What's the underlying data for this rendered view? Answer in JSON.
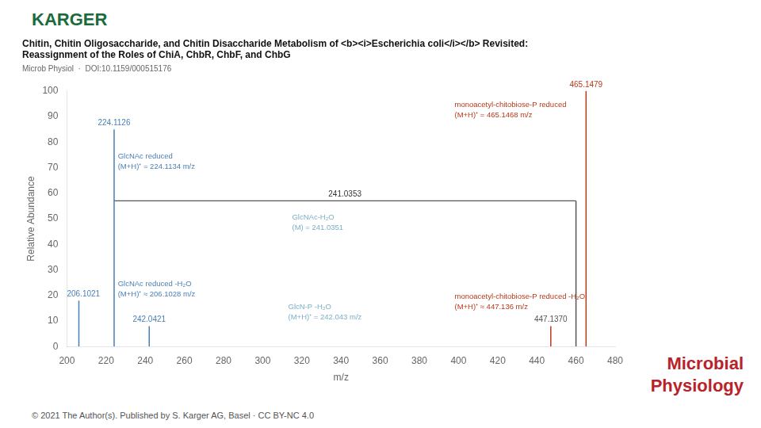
{
  "chart_data": {
    "type": "stem",
    "title": [
      "Chitin, Chitin Oligosaccharide, and Chitin Disaccharide Metabolism of <b><i>Escherichia coli</i></b> Revisited:",
      "Reassignment of the Roles of ChiA, ChbR, ChbF, and ChbG"
    ],
    "subtitle": "Microb Physiol  ·  DOI:10.1159/000515176",
    "logo": {
      "text": "KARGER",
      "color": "#1a6b3c"
    },
    "brand": {
      "text": [
        "Microbial",
        "Physiology"
      ],
      "color": "#b8232a"
    },
    "footer": "© 2021 The Author(s). Published by S. Karger AG, Basel · CC BY-NC 4.0",
    "xlabel": "m/z",
    "ylabel": "Relative Abundance",
    "xlim": [
      200,
      480
    ],
    "ylim": [
      0,
      100
    ],
    "xticks": [
      200,
      220,
      240,
      260,
      280,
      300,
      320,
      340,
      360,
      380,
      400,
      420,
      440,
      460,
      480
    ],
    "yticks": [
      0,
      10,
      20,
      30,
      40,
      50,
      60,
      70,
      80,
      90,
      100
    ],
    "grid": false,
    "peaks": [
      {
        "x": 206.1021,
        "y": 18,
        "color": "#4a7fb5",
        "label": "206.1021",
        "label_color": "#4a7fb5"
      },
      {
        "x": 224.1126,
        "y": 85,
        "color": "#4a7fb5",
        "label": "224.1126",
        "label_color": "#4a7fb5"
      },
      {
        "x": 242.0421,
        "y": 8,
        "color": "#4a7fb5",
        "label": "242.0421",
        "label_color": "#4a7fb5"
      },
      {
        "x": 465.1479,
        "y": 100,
        "color": "#b8391a",
        "label": "465.1479",
        "label_color": "#b8391a"
      },
      {
        "x": 460.0,
        "y": 57,
        "color": "#555555"
      },
      {
        "x": 447.137,
        "y": 8,
        "color": "#b8391a",
        "label": "447.1370",
        "label_color": "#555555"
      }
    ],
    "lines": [
      {
        "x": [
          224.1126,
          460.0
        ],
        "y": [
          57,
          57
        ],
        "color": "#555555",
        "label": "241.0353",
        "label_x": 342.0,
        "label_color": "#333333"
      }
    ],
    "annotations": [
      {
        "x": 226,
        "y": 76,
        "text": "GlcNAc reduced\n(M+H)⁺ = 224.1134 m/z",
        "color": "#4a7fb5"
      },
      {
        "x": 315,
        "y": 52,
        "text": "GlcNAc-H₂O\n(M) = 241.0351",
        "color": "#7aafc8"
      },
      {
        "x": 226,
        "y": 26,
        "text": "GlcNAc reduced -H₂O\n(M+H)⁺ ≈ 206.1028 m/z",
        "color": "#4a7fb5"
      },
      {
        "x": 313,
        "y": 17,
        "text": "GlcN-P -H₂O\n(M+H)⁺ = 242.043 m/z",
        "color": "#7aafc8"
      },
      {
        "x": 398,
        "y": 96,
        "text": "monoacetyl-chitobiose-P reduced\n(M+H)⁺ = 465.1468 m/z",
        "color": "#b8391a"
      },
      {
        "x": 398,
        "y": 21,
        "text": "monoacetyl-chitobiose-P reduced -H₂O\n(M+H)⁺ ≈ 447.136 m/z",
        "color": "#b8391a"
      }
    ]
  }
}
